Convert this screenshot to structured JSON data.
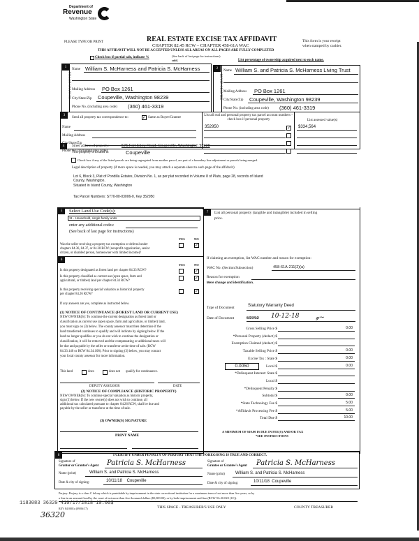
{
  "header": {
    "dept": "Department of",
    "revenue": "Revenue",
    "state": "Washington State",
    "title": "REAL ESTATE EXCISE TAX AFFIDAVIT",
    "please": "PLEASE TYPE OR PRINT",
    "chapter": "CHAPTER 82.45 RCW – CHAPTER 458-61A WAC",
    "warning": "THIS AFFIDAVIT WILL NOT BE ACCEPTED UNLESS ALL AREAS ON ALL PAGES ARE FULLY COMPLETED",
    "receipt1": "This form is your receipt",
    "receipt2": "when stamped by cashier.",
    "see_back": "(See back of last page for instructions)",
    "partial": "Check box if partial sale, indicate %",
    "sold": "sold.",
    "ownership": "List percentage of ownership acquired next to each name."
  },
  "seller": {
    "side": "SELLER GRANTOR",
    "name_label": "Name",
    "name": "William S. McHarness and Patricia S. McHarness",
    "addr_label": "Mailing Address",
    "addr": "PO Box 1261",
    "city_label": "City/State/Zip",
    "city": "Coupeville, Washington  98239",
    "phone_label": "Phone No. (including area code)",
    "phone": "(360) 461-3319"
  },
  "buyer": {
    "side": "BUYER GRANTEE",
    "name_label": "Name",
    "name": "William S. and Patricia S. McHarness Living Trust",
    "addr_label": "Mailing Address",
    "addr": "PO Box 1261",
    "city_label": "City/State/Zip",
    "city": "Coupeville, Washington  98239",
    "phone_label": "Phone No. (including area code)",
    "phone": "(360) 461-3319"
  },
  "correspondence": {
    "label": "Send all property tax correspondence to:",
    "same": "Same as Buyer/Grantee",
    "same_checked": true,
    "name": "Name",
    "addr": "Mailing Address",
    "city": "City/State/Zip",
    "phone": "Phone No. (including area code)"
  },
  "parcels": {
    "header": "List all real and personal property tax parcel account numbers – check box if personal property",
    "value_header": "List assessed value(s)",
    "items": [
      {
        "number": "352950",
        "checked": true,
        "value": "$334,564"
      },
      {
        "number": "",
        "checked": false,
        "value": ""
      },
      {
        "number": "",
        "checked": false,
        "value": ""
      },
      {
        "number": "",
        "checked": false,
        "value": ""
      }
    ]
  },
  "property": {
    "street_label": "Street address of property:",
    "street": "575 Fort Ebey Road, Coupeville, Washington  98239",
    "located_label": "This property is located in",
    "located": "Coupeville",
    "segregated": "Check box if any of the listed parcels are being segregated from another parcel, are part of a boundary line adjustment or parcels being merged.",
    "legal_label": "Legal description of property (if more space is needed, you may attach a separate sheet to each page of the affidavit)",
    "legal1": "Lot 6, Block 3, Plat of Pondilla Estates, Division No. 1, as per plat recorded in Volume 8 of Plats, page 28, records of Island",
    "legal2": "County, Washington.",
    "legal3": "Situated in Island County, Washington",
    "parcel_nums": "Tax Parcel Numbers:  S770-00-03006-0, Key 352950"
  },
  "landuse": {
    "label": "Select Land Use Code(s):",
    "code": "11 - Household, single family units",
    "additional": "enter any additional codes:",
    "see_back": "(See back of last page for instructions)",
    "yes": "YES",
    "no": "NO",
    "q_exempt": [
      "Was the seller receiving a property tax exemption or deferral under",
      "chapters 84.36, 84.37, or 84.38 RCW (nonprofit organization, senior",
      "citizen, or disabled person, homeowner with limited income)?"
    ]
  },
  "designation": {
    "yes": "YES",
    "no": "NO",
    "q1": "Is this property designated as forest land per chapter 84.33 RCW?",
    "q2a": "Is this property classified as current use (open space, farm and",
    "q2b": "agricultural, or timber) land per chapter 84.34 RCW?",
    "q3a": "Is this property receiving special valuation as historical property",
    "q3b": "per chapter 84.26 RCW?",
    "if_yes": "If any answers are yes, complete as instructed below.",
    "n1_title": "(1) NOTICE OF CONTINUANCE (FOREST LAND OR CURRENT USE)",
    "n1": [
      "NEW OWNER(S): To continue the current designation as forest land or",
      "classification as current use (open space, farm and agriculture, or timber) land,",
      "you must sign on (3) below. The county assessor must then determine if the",
      "land transferred continues to qualify and will indicate by signing below. If the",
      "land no longer qualifies or you do not wish to continue the designation or",
      "classification, it will be removed and the compensating or additional taxes will",
      "be due and payable by the seller or transferor at the time of sale. (RCW",
      "84.33.140 or RCW 84.34.108). Prior to signing (3) below, you may contact",
      "your local county assessor for more information."
    ],
    "this_land": "This land",
    "does": "does",
    "does_not": "does not",
    "qualify": "qualify for continuance.",
    "assessor": "DEPUTY ASSESSOR",
    "date": "DATE",
    "n2_title": "(2) NOTICE OF COMPLIANCE (HISTORIC PROPERTY)",
    "n2": [
      "NEW OWNER(S): To continue special valuation as historic property,",
      "sign (3) below. If the new owner(s) does not wish to continue, all",
      "additional tax calculated pursuant to chapter 84.26 RCW, shall be due and",
      "payable by the seller or transferor at the time of sale."
    ],
    "n3_title": "(3) OWNER(S) SIGNATURE",
    "print_name": "PRINT NAME"
  },
  "personal": {
    "label": "List all  personal property (tangible and intangible) included in selling",
    "label2": "price."
  },
  "exemption": {
    "label": "If claiming an exemption, list WAC number and reason for exemption:",
    "wac_label": "WAC No. (Section/Subsection)",
    "wac": "458-61A-211(2)(a)",
    "reason_label": "Reason for exemption",
    "reason": "Mere change and identification.",
    "doctype_label": "Type of Document",
    "doctype": "Statutory Warranty Deed",
    "docdate_label": "Date of Document",
    "docdate_struck": "6/27/12",
    "docdate": "10-12-18"
  },
  "tax": {
    "rate": "0.0050",
    "rows": [
      {
        "label": "Gross Selling Price $",
        "value": "0.00"
      },
      {
        "label": "*Personal Property (deduct) $",
        "value": ""
      },
      {
        "label": "Exemption Claimed (deduct) $",
        "value": ""
      },
      {
        "label": "Taxable Selling Price $",
        "value": "0.00"
      },
      {
        "label": "Excise Tax : State $",
        "value": "0.00"
      },
      {
        "label": "Local $",
        "value": "0.00"
      },
      {
        "label": "*Delinquent Interest: State $",
        "value": ""
      },
      {
        "label": "Local $",
        "value": ""
      },
      {
        "label": "*Delinquent Penalty $",
        "value": ""
      },
      {
        "label": "Subtotal $",
        "value": "0.00"
      },
      {
        "label": "*State Technology Fee $",
        "value": "5.00"
      },
      {
        "label": "*Affidavit Processing Fee $",
        "value": "5.00"
      },
      {
        "label": "Total Due $",
        "value": "10.00"
      }
    ],
    "minimum": "A MINIMUM OF $10.00 IS DUE IN FEE(S) AND/OR TAX",
    "see": "*SEE INSTRUCTIONS"
  },
  "certify": {
    "text": "I CERTIFY UNDER PENALTY OF PERJURY THAT THE FOREGOING IS TRUE AND CORRECT.",
    "grantor_sig1": "Signature of",
    "grantor_sig2": "Grantor or Grantor's Agent",
    "grantee_sig1": "Signature of",
    "grantee_sig2": "Grantee or Grantee's Agent",
    "name_label": "Name (print)",
    "grantor_name": "William S. and Patricia S. McHarness",
    "grantee_name": "William S. and Patricia S. McHarness",
    "date_label": "Date & city of signing:",
    "grantor_date": "10/11/18    Coupeville",
    "grantee_date": "10/11/18  Coupeville"
  },
  "footer": {
    "perjury1": "Perjury: Perjury is a class C felony which is punishable by imprisonment in the state correctional institution for a maximum term of not more than five years, or by",
    "perjury2": "a fine in an amount fixed by the court of not more than five thousand dollars ($5,000.00), or by both imprisonment and fine (RCW 9A.20.020 (1C)).",
    "rev": "REV 84 0001a (09/06/17)",
    "treasurer_use": "THIS SPACE - TREASURER'S USE ONLY",
    "county": "COUNTY TREASURER",
    "stamp": "1183083 36320 410/17/2018 10:00$",
    "handwritten": "36320"
  }
}
